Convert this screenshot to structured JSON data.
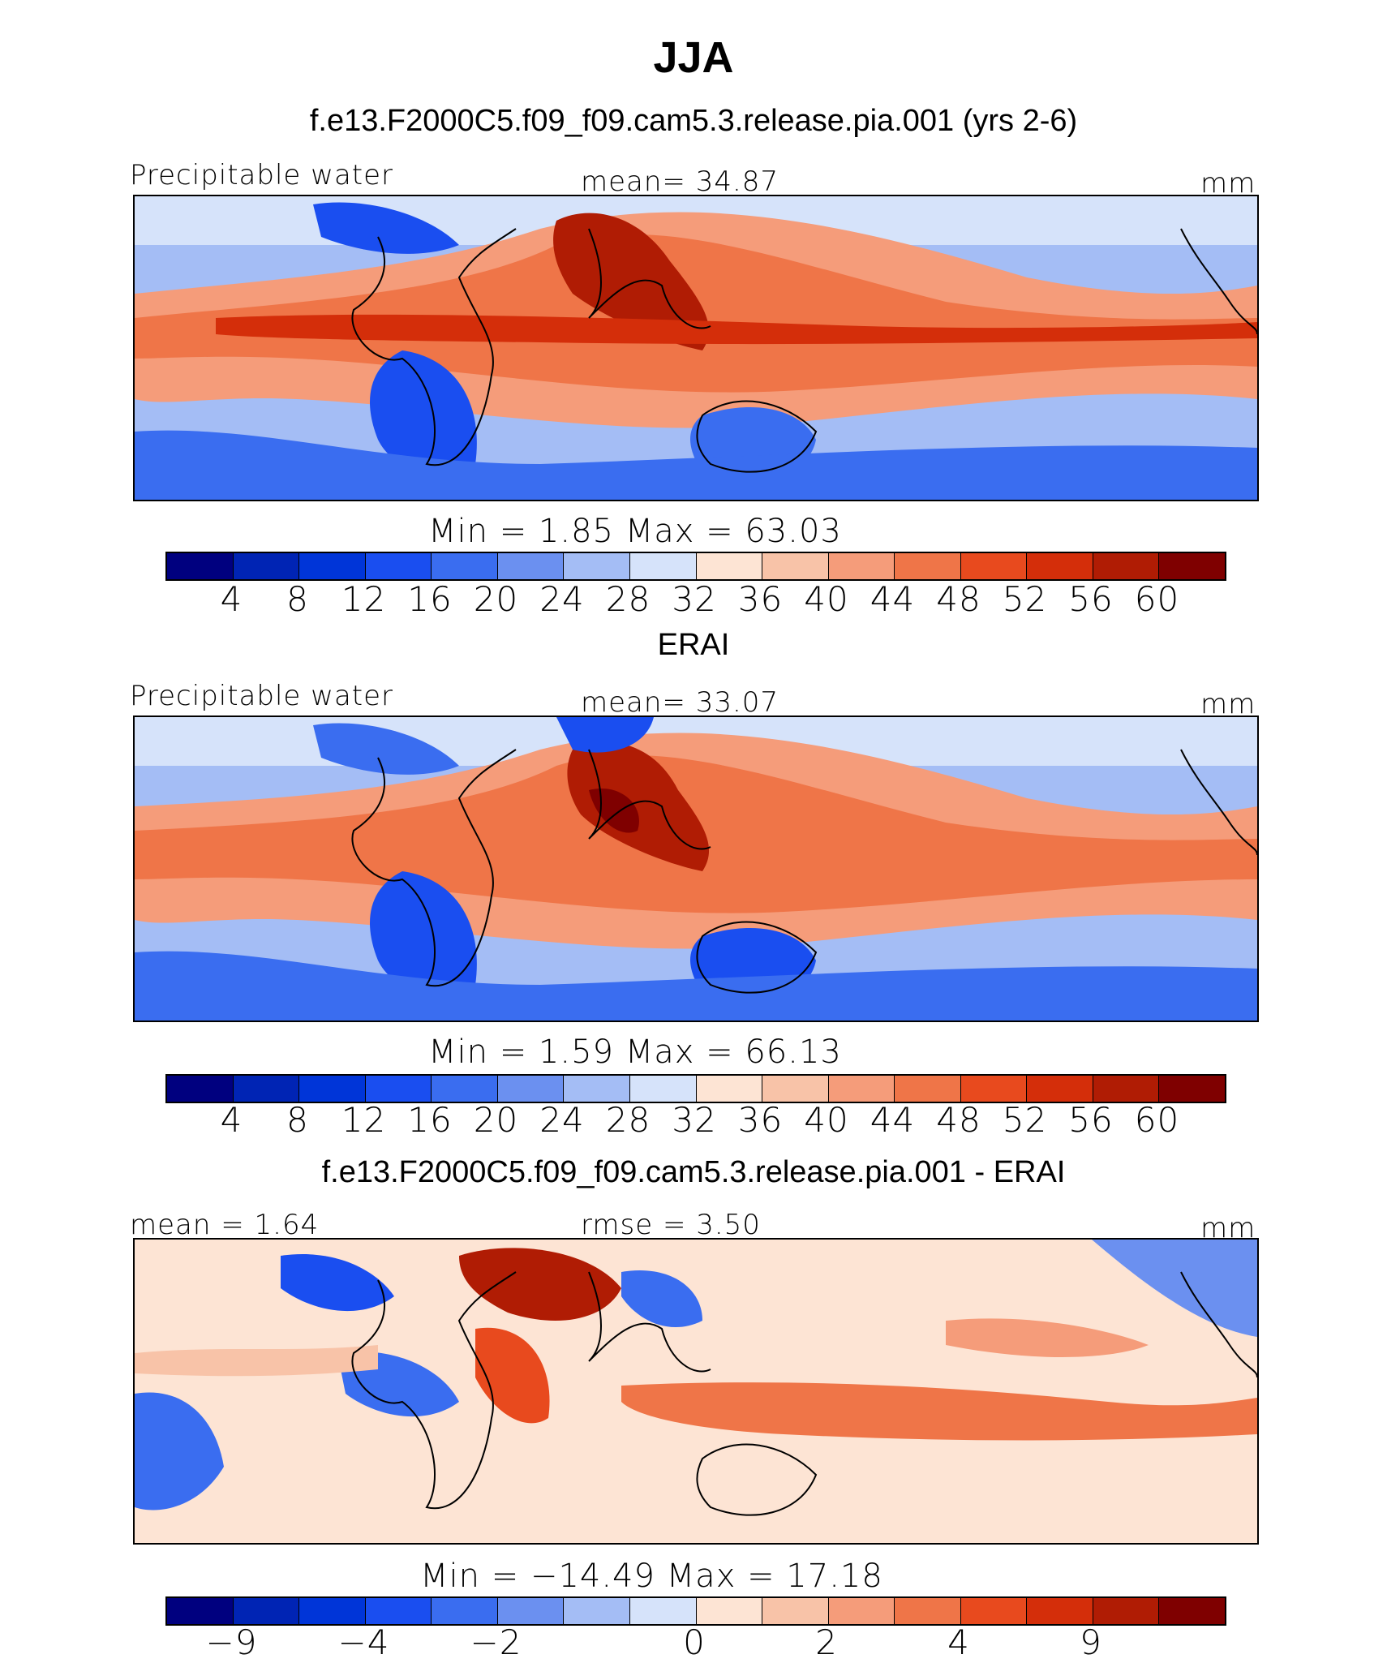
{
  "title": "JJA",
  "panels": [
    {
      "title": "f.e13.F2000C5.f09_f09.cam5.3.release.pia.001 (yrs 2-6)",
      "left_label": "Precipitable water",
      "center_label": "mean=   34.87",
      "right_label": "mm",
      "minmax": "Min  =      1.85  Max  =    63.03",
      "palette": "abs",
      "ticks": [
        "4",
        "8",
        "12",
        "16",
        "20",
        "24",
        "28",
        "32",
        "36",
        "40",
        "44",
        "48",
        "52",
        "56",
        "60"
      ]
    },
    {
      "title": "ERAI",
      "left_label": "Precipitable water",
      "center_label": "mean=   33.07",
      "right_label": "mm",
      "minmax": "Min  =      1.59  Max  =    66.13",
      "palette": "abs",
      "ticks": [
        "4",
        "8",
        "12",
        "16",
        "20",
        "24",
        "28",
        "32",
        "36",
        "40",
        "44",
        "48",
        "52",
        "56",
        "60"
      ]
    },
    {
      "title": "f.e13.F2000C5.f09_f09.cam5.3.release.pia.001 - ERAI",
      "left_label": "mean  =     1.64",
      "center_label": "rmse  =     3.50",
      "right_label": "mm",
      "minmax": "Min  = −14.49  Max  =    17.18",
      "palette": "diff",
      "ticks": [
        "−9",
        "−4",
        "−2",
        "0",
        "2",
        "4",
        "9"
      ]
    }
  ],
  "colors": {
    "scale": [
      "#00007f",
      "#0024b4",
      "#0035d8",
      "#1a4ef0",
      "#3a6df0",
      "#6b90f0",
      "#a4bdf5",
      "#d6e3fa",
      "#fde4d4",
      "#f8c3a8",
      "#f59c7a",
      "#ef7548",
      "#e84a1e",
      "#d42e0a",
      "#b01c04",
      "#7f0000"
    ]
  }
}
